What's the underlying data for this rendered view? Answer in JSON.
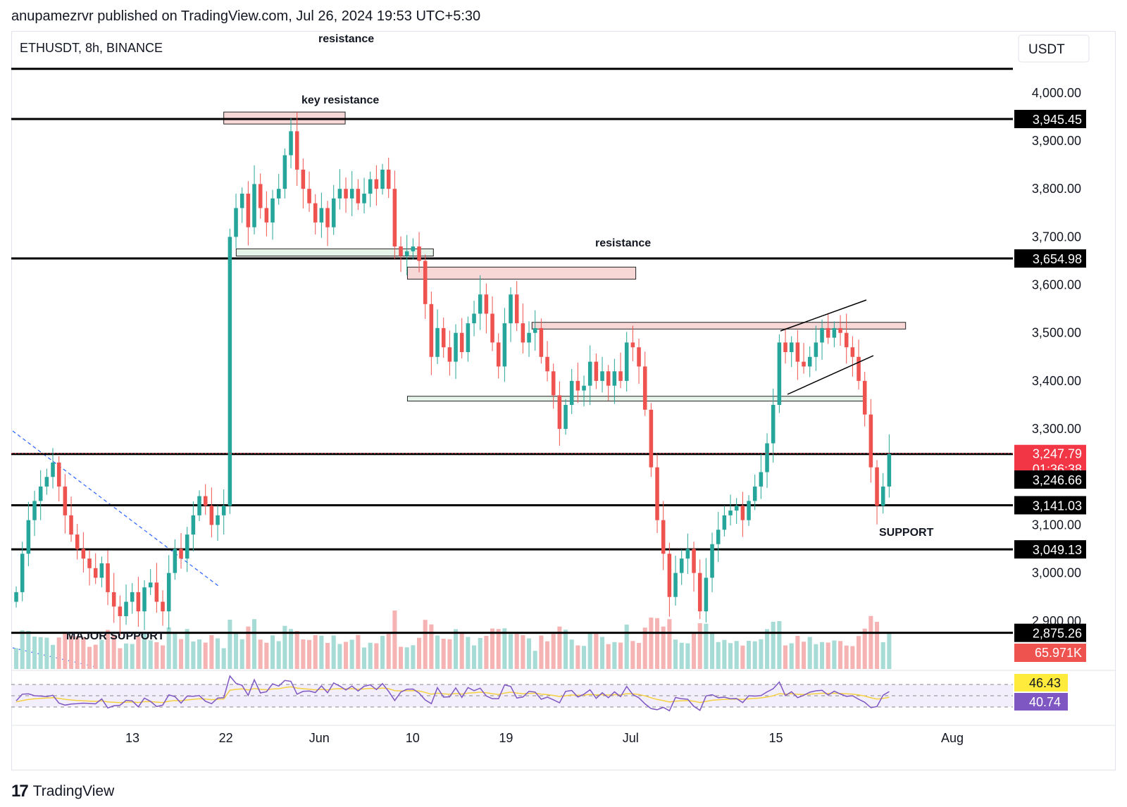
{
  "header": {
    "attribution": "anupamezrvr published on TradingView.com, Jul 26, 2024 19:53 UTC+5:30"
  },
  "footer": {
    "brand": "TradingView",
    "logo_glyph": "17"
  },
  "colors": {
    "up": "#26a69a",
    "down": "#ef5350",
    "line": "#000000",
    "rsi": "#7e57c2",
    "rsi_ma": "#f5d142",
    "zone_red": "#f8d7d7",
    "zone_green": "#e6f4ea"
  },
  "chart_data": {
    "type": "candlestick",
    "symbol_label": "ETHUSDT, 8h, BINANCE",
    "currency_label": "USDT",
    "ylim": [
      2800,
      4120
    ],
    "y_ticks": [
      {
        "value": 4000,
        "label": "4,000.00"
      },
      {
        "value": 3900,
        "label": "3,900.00"
      },
      {
        "value": 3800,
        "label": "3,800.00"
      },
      {
        "value": 3700,
        "label": "3,700.00"
      },
      {
        "value": 3600,
        "label": "3,600.00"
      },
      {
        "value": 3500,
        "label": "3,500.00"
      },
      {
        "value": 3400,
        "label": "3,400.00"
      },
      {
        "value": 3300,
        "label": "3,300.00"
      },
      {
        "value": 3100,
        "label": "3,100.00"
      },
      {
        "value": 3000,
        "label": "3,000.00"
      },
      {
        "value": 2900,
        "label": "2,900.00"
      }
    ],
    "x_ticks": [
      {
        "day": 13,
        "label": "13"
      },
      {
        "day": 22,
        "label": "22"
      },
      {
        "day": 31,
        "label": "Jun"
      },
      {
        "day": 40,
        "label": "10"
      },
      {
        "day": 49,
        "label": "19"
      },
      {
        "day": 61,
        "label": "Jul"
      },
      {
        "day": 75,
        "label": "15"
      },
      {
        "day": 92,
        "label": "Aug"
      }
    ],
    "xlim_days": [
      13,
      92
    ],
    "x_note": "days counted from May 1, 2024",
    "levels": [
      {
        "price": 4050,
        "label": "resistance"
      },
      {
        "price": 3945.45,
        "label": "key resistance",
        "badge": "3,945.45"
      },
      {
        "price": 3654.98,
        "label": "resistance",
        "badge": "3,654.98"
      },
      {
        "price": 3247.79,
        "label": "",
        "badge": "3,247.79"
      },
      {
        "price": 3141.03,
        "label": "",
        "badge": "3,141.03"
      },
      {
        "price": 3049.13,
        "label": "SUPPORT",
        "badge": "3,049.13"
      },
      {
        "price": 2875.26,
        "label": "MAJOR SUPPORT",
        "badge": "2,875.26"
      }
    ],
    "current_price": {
      "value": 3247.79,
      "label": "3,247.79",
      "countdown": "01:36:38"
    },
    "extra_badge": {
      "value": 3246.66,
      "label": "3,246.66"
    },
    "volume_badge": "65.971K",
    "zones": [
      {
        "from_day": 21.8,
        "to_day": 33.5,
        "low": 3935,
        "high": 3960,
        "kind": "red"
      },
      {
        "from_day": 23,
        "to_day": 42,
        "low": 3660,
        "high": 3675,
        "kind": "green"
      },
      {
        "from_day": 39.5,
        "to_day": 61.5,
        "low": 3612,
        "high": 3637,
        "kind": "red"
      },
      {
        "from_day": 51.5,
        "to_day": 87.5,
        "low": 3508,
        "high": 3522,
        "kind": "red"
      },
      {
        "from_day": 39.5,
        "to_day": 83.5,
        "low": 3358,
        "high": 3368,
        "kind": "green"
      }
    ],
    "closes": [
      2960,
      3040,
      3110,
      3150,
      3180,
      3200,
      3230,
      3180,
      3120,
      3080,
      3050,
      3030,
      3010,
      2990,
      3020,
      2960,
      2930,
      2910,
      2940,
      2960,
      2920,
      2970,
      2980,
      2940,
      2920,
      3000,
      3050,
      3030,
      3080,
      3120,
      3160,
      3140,
      3100,
      3120,
      3140,
      3700,
      3760,
      3790,
      3720,
      3810,
      3760,
      3730,
      3780,
      3800,
      3870,
      3920,
      3840,
      3800,
      3770,
      3730,
      3760,
      3720,
      3780,
      3800,
      3780,
      3800,
      3770,
      3790,
      3820,
      3800,
      3840,
      3800,
      3680,
      3660,
      3670,
      3680,
      3650,
      3560,
      3450,
      3510,
      3470,
      3440,
      3500,
      3460,
      3520,
      3540,
      3580,
      3540,
      3480,
      3430,
      3520,
      3580,
      3520,
      3480,
      3500,
      3510,
      3450,
      3420,
      3370,
      3300,
      3350,
      3400,
      3380,
      3390,
      3440,
      3400,
      3420,
      3390,
      3420,
      3400,
      3480,
      3470,
      3430,
      3340,
      3220,
      3110,
      3040,
      2950,
      3000,
      3030,
      3050,
      3000,
      2920,
      2990,
      3060,
      3090,
      3120,
      3130,
      3140,
      3110,
      3150,
      3180,
      3210,
      3270,
      3350,
      3480,
      3460,
      3480,
      3440,
      3430,
      3450,
      3480,
      3510,
      3490,
      3510,
      3500,
      3470,
      3450,
      3400,
      3330,
      3220,
      3140,
      3180,
      3247.79
    ],
    "rsi": {
      "value": "40.74",
      "ma_value": "46.43"
    }
  }
}
